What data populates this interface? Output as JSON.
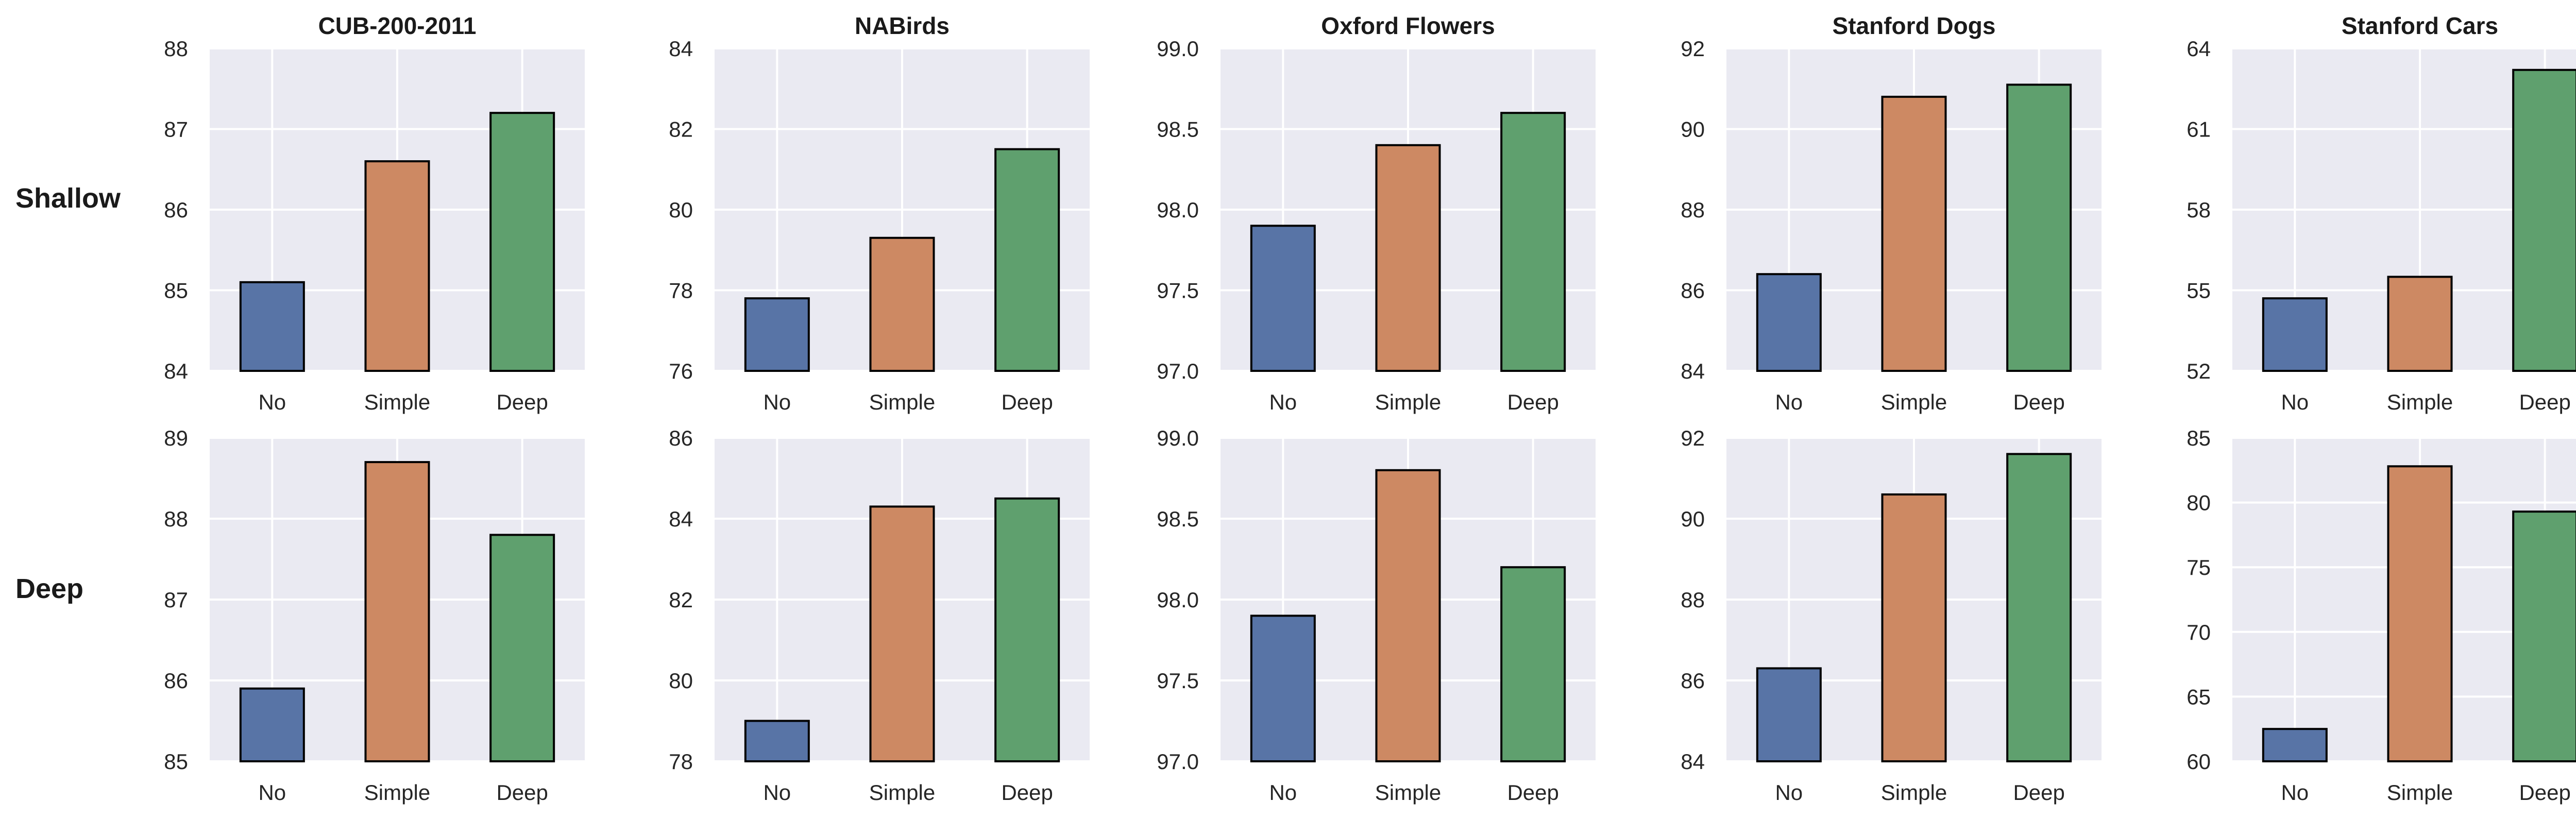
{
  "row_labels": [
    "Shallow",
    "Deep"
  ],
  "colors": [
    "#5874a6",
    "#cd8963",
    "#5fa06e"
  ],
  "chart_data": [
    {
      "type": "bar",
      "row": "Shallow",
      "title": "CUB-200-2011",
      "categories": [
        "No",
        "Simple",
        "Deep"
      ],
      "values": [
        85.1,
        86.6,
        87.2
      ],
      "ylim": [
        84,
        88
      ],
      "yticks": [
        84,
        85,
        86,
        87,
        88
      ],
      "tick_decimals": 0,
      "xlabel": "",
      "ylabel": "",
      "grid": true
    },
    {
      "type": "bar",
      "row": "Shallow",
      "title": "NABirds",
      "categories": [
        "No",
        "Simple",
        "Deep"
      ],
      "values": [
        77.8,
        79.3,
        81.5
      ],
      "ylim": [
        76,
        84
      ],
      "yticks": [
        76,
        78,
        80,
        82,
        84
      ],
      "tick_decimals": 0,
      "xlabel": "",
      "ylabel": "",
      "grid": true
    },
    {
      "type": "bar",
      "row": "Shallow",
      "title": "Oxford Flowers",
      "categories": [
        "No",
        "Simple",
        "Deep"
      ],
      "values": [
        97.9,
        98.4,
        98.6
      ],
      "ylim": [
        97.0,
        99.0
      ],
      "yticks": [
        97.0,
        97.5,
        98.0,
        98.5,
        99.0
      ],
      "tick_decimals": 1,
      "xlabel": "",
      "ylabel": "",
      "grid": true
    },
    {
      "type": "bar",
      "row": "Shallow",
      "title": "Stanford Dogs",
      "categories": [
        "No",
        "Simple",
        "Deep"
      ],
      "values": [
        86.4,
        90.8,
        91.1
      ],
      "ylim": [
        84,
        92
      ],
      "yticks": [
        84,
        86,
        88,
        90,
        92
      ],
      "tick_decimals": 0,
      "xlabel": "",
      "ylabel": "",
      "grid": true
    },
    {
      "type": "bar",
      "row": "Shallow",
      "title": "Stanford Cars",
      "categories": [
        "No",
        "Simple",
        "Deep"
      ],
      "values": [
        54.7,
        55.5,
        63.2
      ],
      "ylim": [
        52,
        64
      ],
      "yticks": [
        52,
        55,
        58,
        61,
        64
      ],
      "tick_decimals": 0,
      "xlabel": "",
      "ylabel": "",
      "grid": true
    },
    {
      "type": "bar",
      "row": "Deep",
      "title": "",
      "categories": [
        "No",
        "Simple",
        "Deep"
      ],
      "values": [
        85.9,
        88.7,
        87.8
      ],
      "ylim": [
        85,
        89
      ],
      "yticks": [
        85,
        86,
        87,
        88,
        89
      ],
      "tick_decimals": 0,
      "xlabel": "",
      "ylabel": "",
      "grid": true
    },
    {
      "type": "bar",
      "row": "Deep",
      "title": "",
      "categories": [
        "No",
        "Simple",
        "Deep"
      ],
      "values": [
        79.0,
        84.3,
        84.5
      ],
      "ylim": [
        78,
        86
      ],
      "yticks": [
        78,
        80,
        82,
        84,
        86
      ],
      "tick_decimals": 0,
      "xlabel": "",
      "ylabel": "",
      "grid": true
    },
    {
      "type": "bar",
      "row": "Deep",
      "title": "",
      "categories": [
        "No",
        "Simple",
        "Deep"
      ],
      "values": [
        97.9,
        98.8,
        98.2
      ],
      "ylim": [
        97.0,
        99.0
      ],
      "yticks": [
        97.0,
        97.5,
        98.0,
        98.5,
        99.0
      ],
      "tick_decimals": 1,
      "xlabel": "",
      "ylabel": "",
      "grid": true
    },
    {
      "type": "bar",
      "row": "Deep",
      "title": "",
      "categories": [
        "No",
        "Simple",
        "Deep"
      ],
      "values": [
        86.3,
        90.6,
        91.6
      ],
      "ylim": [
        84,
        92
      ],
      "yticks": [
        84,
        86,
        88,
        90,
        92
      ],
      "tick_decimals": 0,
      "xlabel": "",
      "ylabel": "",
      "grid": true
    },
    {
      "type": "bar",
      "row": "Deep",
      "title": "",
      "categories": [
        "No",
        "Simple",
        "Deep"
      ],
      "values": [
        62.5,
        82.8,
        79.3
      ],
      "ylim": [
        60,
        85
      ],
      "yticks": [
        60,
        65,
        70,
        75,
        80,
        85
      ],
      "tick_decimals": 0,
      "xlabel": "",
      "ylabel": "",
      "grid": true
    }
  ]
}
